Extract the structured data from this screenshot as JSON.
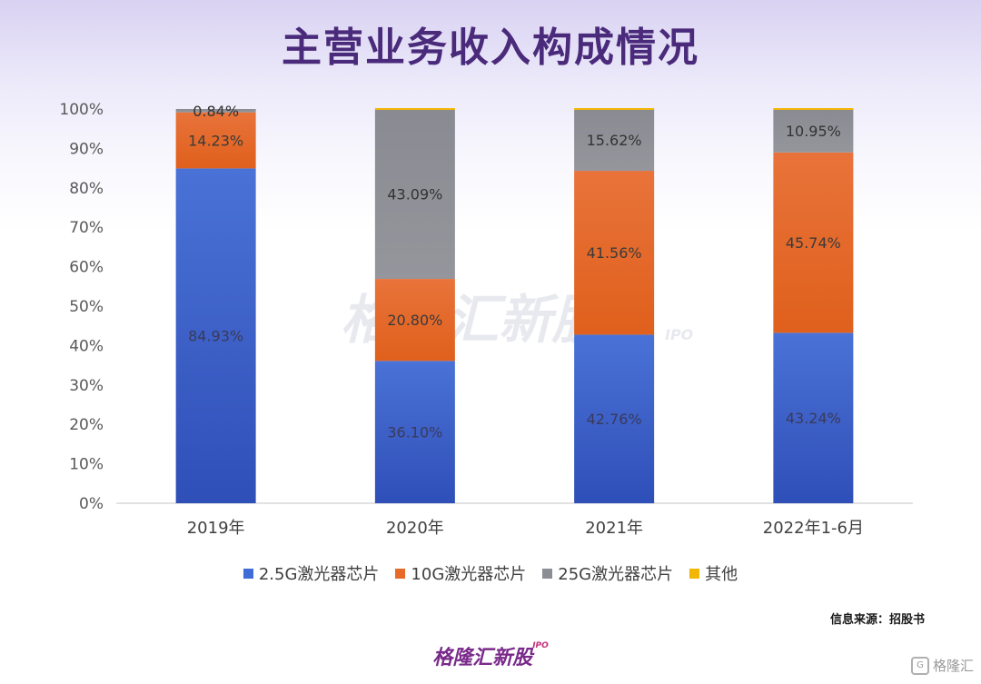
{
  "title": "主营业务收入构成情况",
  "source": "信息来源：招股书",
  "watermark": {
    "text": "格隆汇新股",
    "sub": "IPO"
  },
  "footer_logo": {
    "text": "格隆汇新股",
    "sub": "IPO"
  },
  "corner_mark": "格隆汇",
  "colors": {
    "title": "#4a2a7a",
    "s25G": "#3f6cd8",
    "s10G": "#e86a28",
    "s25Gb": "#8c8c94",
    "other": "#f2b705"
  },
  "chart_data": {
    "type": "bar",
    "stacked": true,
    "categories": [
      "2019年",
      "2020年",
      "2021年",
      "2022年1-6月"
    ],
    "ylim": [
      0,
      100
    ],
    "yticks": [
      "0%",
      "10%",
      "20%",
      "30%",
      "40%",
      "50%",
      "60%",
      "70%",
      "80%",
      "90%",
      "100%"
    ],
    "legend_position": "bottom",
    "series": [
      {
        "name": "2.5G激光器芯片",
        "color": "#3f6cd8",
        "values": [
          84.93,
          36.1,
          42.76,
          43.24
        ],
        "labels": [
          "84.93%",
          "36.10%",
          "42.76%",
          "43.24%"
        ]
      },
      {
        "name": "10G激光器芯片",
        "color": "#e86a28",
        "values": [
          14.23,
          20.8,
          41.56,
          45.74
        ],
        "labels": [
          "14.23%",
          "20.80%",
          "41.56%",
          "45.74%"
        ]
      },
      {
        "name": "25G激光器芯片",
        "color": "#8c8c94",
        "values": [
          0.84,
          43.09,
          15.62,
          10.95
        ],
        "labels": [
          "0.84%",
          "43.09%",
          "15.62%",
          "10.95%"
        ]
      },
      {
        "name": "其他",
        "color": "#f2b705",
        "values": [
          0.0,
          0.01,
          0.06,
          0.07
        ],
        "labels": [
          "",
          "",
          "",
          ""
        ]
      }
    ]
  }
}
